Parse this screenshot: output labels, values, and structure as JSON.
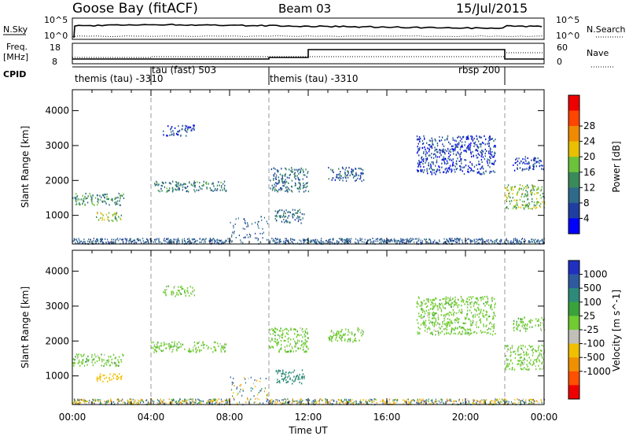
{
  "header": {
    "station": "Goose Bay (fitACF)",
    "beam": "Beam 03",
    "date": "15/Jul/2015"
  },
  "panels": {
    "nsky_label": "N.Sky",
    "nsearch_label": "N.Search",
    "noise_ticks_left": [
      "10^5",
      "10^0"
    ],
    "noise_ticks_right": [
      "10^5",
      "10^0"
    ],
    "freq_label_1": "Freq.",
    "freq_label_2": "[MHz]",
    "freq_ticks": [
      "18",
      "8"
    ],
    "nave_label": "Nave",
    "nave_ticks": [
      "60",
      "0"
    ],
    "cpid_label": "CPID",
    "cpid_segments": [
      {
        "label": "themis (tau) -3310",
        "start_h": 0.0,
        "end_h": 4.0
      },
      {
        "label": "tau (fast) 503",
        "start_h": 4.0,
        "end_h": 10.0
      },
      {
        "label": "themis (tau) -3310",
        "start_h": 10.0,
        "end_h": 22.0
      },
      {
        "label": "rbsp 200",
        "start_h": 22.0,
        "end_h": 22.0
      }
    ]
  },
  "colors": {
    "power_scale": [
      "#0000ff",
      "#1f3fa0",
      "#2e6a8a",
      "#3a8a5a",
      "#6cc23a",
      "#e8c000",
      "#f08a00",
      "#ff4500",
      "#ee0000"
    ],
    "velocity_scale": [
      "#2030c0",
      "#2f5aa0",
      "#2e8a78",
      "#3aa23a",
      "#70cc30",
      "#c0c0b8",
      "#f0c000",
      "#f09000",
      "#ff5000",
      "#ee0000"
    ]
  },
  "chart_data": [
    {
      "type": "heatmap",
      "title": "",
      "xlabel": "",
      "ylabel": "Slant Range [km]",
      "xlim": [
        0,
        24
      ],
      "ylim": [
        180,
        4600
      ],
      "yticks": [
        "1000",
        "2000",
        "3000",
        "4000"
      ],
      "colorbar_label": "Power [dB]",
      "colorbar_ticks": [
        "4",
        "8",
        "12",
        "16",
        "20",
        "24",
        "28"
      ],
      "vlines_h": [
        4,
        10,
        22
      ],
      "scatter_regions": [
        {
          "t0": 0.0,
          "t1": 2.6,
          "r0": 1300,
          "r1": 1650,
          "power": 14
        },
        {
          "t0": 1.2,
          "t1": 2.5,
          "r0": 850,
          "r1": 1100,
          "power": 18
        },
        {
          "t0": 4.0,
          "t1": 7.8,
          "r0": 1700,
          "r1": 2000,
          "power": 12
        },
        {
          "t0": 4.6,
          "t1": 6.2,
          "r0": 3300,
          "r1": 3600,
          "power": 6
        },
        {
          "t0": 10.0,
          "t1": 12.0,
          "r0": 1700,
          "r1": 2400,
          "power": 10
        },
        {
          "t0": 10.3,
          "t1": 11.8,
          "r0": 800,
          "r1": 1200,
          "power": 10
        },
        {
          "t0": 13.0,
          "t1": 14.8,
          "r0": 2000,
          "r1": 2400,
          "power": 8
        },
        {
          "t0": 17.5,
          "t1": 21.5,
          "r0": 2200,
          "r1": 3300,
          "power": 6
        },
        {
          "t0": 22.0,
          "t1": 24.0,
          "r0": 1200,
          "r1": 1900,
          "power": 18
        },
        {
          "t0": 22.4,
          "t1": 24.0,
          "r0": 2300,
          "r1": 2700,
          "power": 6
        }
      ]
    },
    {
      "type": "heatmap",
      "title": "",
      "xlabel": "Time UT",
      "ylabel": "Slant Range [km]",
      "xlim": [
        0,
        24
      ],
      "ylim": [
        180,
        4600
      ],
      "xticks": [
        "00:00",
        "04:00",
        "08:00",
        "12:00",
        "16:00",
        "20:00",
        "00:00"
      ],
      "yticks": [
        "1000",
        "2000",
        "3000",
        "4000"
      ],
      "colorbar_label": "Velocity [m s^-1]",
      "colorbar_ticks": [
        "1000",
        "500",
        "100",
        "25",
        "-25",
        "-100",
        "-500",
        "-1000"
      ],
      "vlines_h": [
        4,
        10,
        22
      ],
      "scatter_regions": [
        {
          "t0": 0.0,
          "t1": 2.6,
          "r0": 1300,
          "r1": 1650,
          "velocity": 0
        },
        {
          "t0": 1.2,
          "t1": 2.5,
          "r0": 850,
          "r1": 1100,
          "velocity": -150
        },
        {
          "t0": 4.0,
          "t1": 7.8,
          "r0": 1700,
          "r1": 2000,
          "velocity": 0
        },
        {
          "t0": 4.6,
          "t1": 6.2,
          "r0": 3300,
          "r1": 3600,
          "velocity": 0
        },
        {
          "t0": 10.0,
          "t1": 12.0,
          "r0": 1700,
          "r1": 2400,
          "velocity": 0
        },
        {
          "t0": 10.3,
          "t1": 11.8,
          "r0": 800,
          "r1": 1200,
          "velocity": 150
        },
        {
          "t0": 13.0,
          "t1": 14.8,
          "r0": 2000,
          "r1": 2400,
          "velocity": 0
        },
        {
          "t0": 17.5,
          "t1": 21.5,
          "r0": 2200,
          "r1": 3300,
          "velocity": 0
        },
        {
          "t0": 22.0,
          "t1": 24.0,
          "r0": 1200,
          "r1": 1900,
          "velocity": 0
        },
        {
          "t0": 22.4,
          "t1": 24.0,
          "r0": 2300,
          "r1": 2700,
          "velocity": 0
        }
      ]
    }
  ]
}
